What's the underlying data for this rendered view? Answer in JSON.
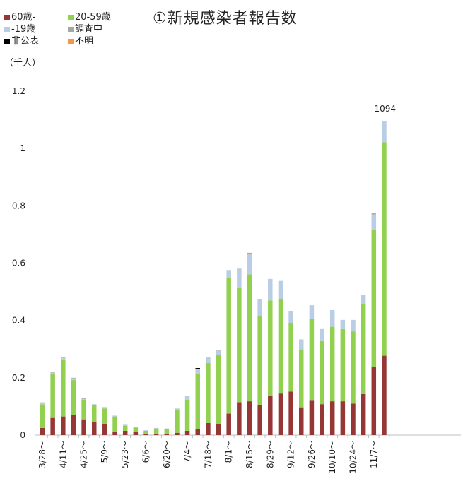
{
  "chart_data": {
    "type": "bar",
    "title": "①新規感染者報告数",
    "unit_label": "（千人）",
    "stacked": true,
    "ylim": [
      0,
      1.2
    ],
    "yticks": [
      "0",
      "0.2",
      "0.4",
      "0.6",
      "0.8",
      "1",
      "1.2"
    ],
    "categories": [
      "3/28～",
      "",
      "4/11～",
      "",
      "4/25～",
      "",
      "5/9～",
      "",
      "5/23～",
      "",
      "6/6～",
      "",
      "6/20～",
      "",
      "7/4～",
      "",
      "7/18～",
      "",
      "8/1～",
      "",
      "8/15～",
      "",
      "8/29～",
      "",
      "9/12～",
      "",
      "9/26～",
      "",
      "10/10～",
      "",
      "10/24～",
      "",
      "11/7～",
      ""
    ],
    "series": [
      {
        "name": "60歳-",
        "color": "#953735",
        "values": [
          0.025,
          0.06,
          0.065,
          0.07,
          0.055,
          0.045,
          0.04,
          0.012,
          0.015,
          0.01,
          0.005,
          0.003,
          0.005,
          0.008,
          0.015,
          0.022,
          0.042,
          0.04,
          0.075,
          0.115,
          0.118,
          0.105,
          0.138,
          0.145,
          0.152,
          0.097,
          0.12,
          0.108,
          0.118,
          0.118,
          0.11,
          0.143,
          0.237,
          0.277
        ]
      },
      {
        "name": "20-59歳",
        "color": "#92d050",
        "values": [
          0.082,
          0.153,
          0.198,
          0.122,
          0.067,
          0.06,
          0.053,
          0.053,
          0.018,
          0.016,
          0.01,
          0.02,
          0.015,
          0.08,
          0.108,
          0.192,
          0.21,
          0.24,
          0.473,
          0.398,
          0.443,
          0.31,
          0.332,
          0.33,
          0.238,
          0.202,
          0.285,
          0.22,
          0.26,
          0.252,
          0.252,
          0.315,
          0.478,
          0.745
        ]
      },
      {
        "name": "-19歳",
        "color": "#b9cde5",
        "values": [
          0.005,
          0.006,
          0.008,
          0.007,
          0.005,
          0.003,
          0.005,
          0.003,
          0.003,
          0.002,
          0.002,
          0.002,
          0.003,
          0.005,
          0.015,
          0.015,
          0.017,
          0.015,
          0.028,
          0.068,
          0.07,
          0.058,
          0.075,
          0.063,
          0.043,
          0.035,
          0.048,
          0.042,
          0.058,
          0.032,
          0.04,
          0.03,
          0.055,
          0.072
        ]
      },
      {
        "name": "調査中",
        "color": "#a6a6a6",
        "values": [
          0.002,
          0.001,
          0.001,
          0.001,
          0.001,
          0,
          0,
          0,
          0,
          0,
          0,
          0,
          0,
          0,
          0,
          0.002,
          0.001,
          0.002,
          0,
          0,
          0,
          0,
          0,
          0,
          0,
          0,
          0,
          0,
          0,
          0,
          0,
          0,
          0.002,
          0
        ]
      },
      {
        "name": "非公表",
        "color": "#000000",
        "values": [
          0,
          0,
          0,
          0,
          0,
          0,
          0,
          0,
          0,
          0,
          0,
          0,
          0,
          0,
          0,
          0.003,
          0,
          0,
          0,
          0,
          0,
          0,
          0,
          0,
          0,
          0,
          0,
          0,
          0,
          0,
          0,
          0,
          0,
          0
        ]
      },
      {
        "name": "不明",
        "color": "#f79646",
        "values": [
          0,
          0,
          0,
          0,
          0,
          0,
          0,
          0,
          0,
          0,
          0,
          0,
          0,
          0,
          0,
          0,
          0,
          0,
          0,
          0,
          0.005,
          0,
          0,
          0,
          0,
          0,
          0,
          0,
          0,
          0,
          0,
          0,
          0.003,
          0
        ]
      }
    ],
    "data_labels": [
      {
        "index": 33,
        "text": "1094"
      }
    ],
    "grid": false,
    "legend_position": "top-left"
  }
}
